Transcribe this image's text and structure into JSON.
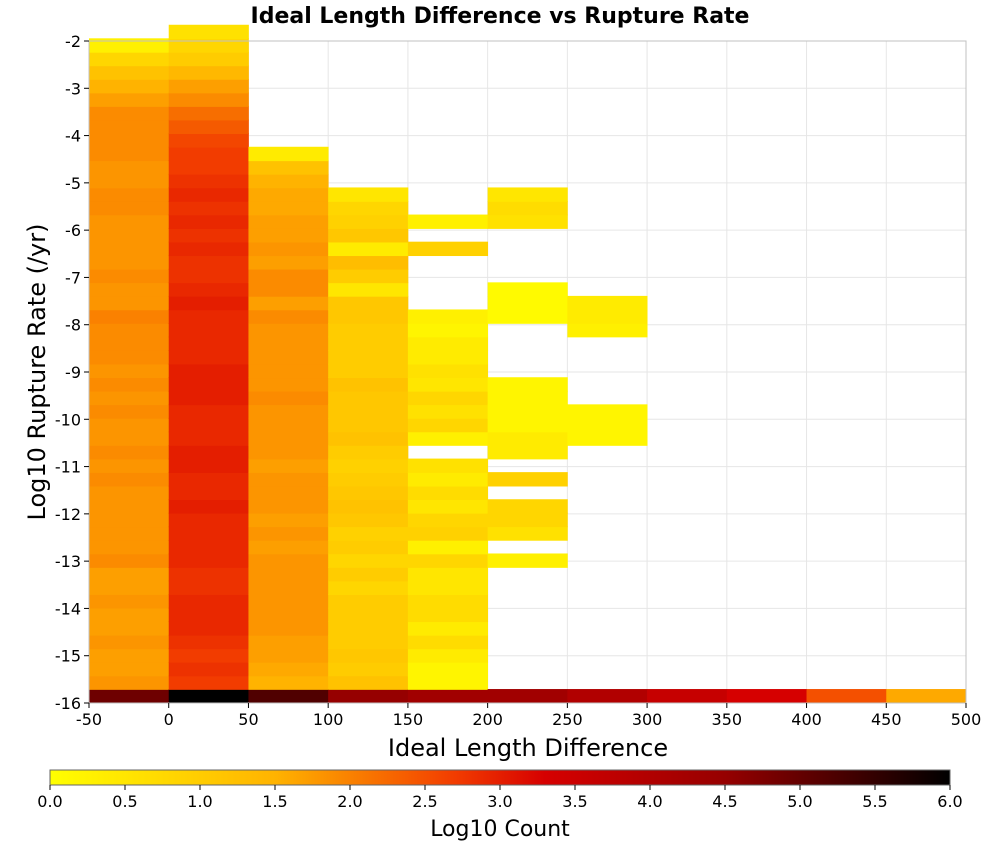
{
  "chart_data": {
    "type": "heatmap",
    "title": "Ideal Length Difference vs Rupture Rate",
    "xlabel": "Ideal Length Difference",
    "ylabel": "Log10 Rupture Rate (/yr)",
    "xlim": [
      -50,
      500
    ],
    "ylim": [
      -16,
      -2
    ],
    "x_ticks": [
      "-50",
      "0",
      "50",
      "100",
      "150",
      "200",
      "250",
      "300",
      "350",
      "400",
      "450",
      "500"
    ],
    "y_ticks": [
      "-2",
      "-3",
      "-4",
      "-5",
      "-6",
      "-7",
      "-8",
      "-9",
      "-10",
      "-11",
      "-12",
      "-13",
      "-14",
      "-15",
      "-16"
    ],
    "x_bin_width": 50,
    "y_bin_height": 0.2867,
    "y_bins_start": -16,
    "colorbar": {
      "label": "Log10 Count",
      "min": 0.0,
      "max": 6.0,
      "ticks": [
        "0.0",
        "0.5",
        "1.0",
        "1.5",
        "2.0",
        "2.5",
        "3.0",
        "3.5",
        "4.0",
        "4.5",
        "5.0",
        "5.5",
        "6.0"
      ]
    },
    "columns": [
      {
        "x_start": -50,
        "values": [
          4.9,
          1.8,
          1.7,
          1.7,
          1.8,
          1.7,
          1.7,
          1.8,
          1.7,
          1.7,
          1.9,
          1.8,
          1.8,
          1.8,
          1.8,
          1.8,
          1.9,
          1.8,
          1.9,
          1.8,
          1.8,
          1.9,
          1.8,
          1.9,
          1.8,
          1.9,
          1.9,
          1.9,
          2.0,
          1.8,
          1.8,
          1.9,
          1.8,
          1.8,
          1.8,
          1.8,
          1.9,
          1.9,
          1.8,
          1.8,
          1.9,
          1.9,
          1.9,
          1.9,
          1.7,
          1.5,
          1.2,
          0.8,
          0.3
        ]
      },
      {
        "x_start": 0,
        "values": [
          6.0,
          2.7,
          2.8,
          2.7,
          2.8,
          2.9,
          2.9,
          2.9,
          2.8,
          2.8,
          2.9,
          2.9,
          2.9,
          2.9,
          3.0,
          2.9,
          2.9,
          3.0,
          3.0,
          2.9,
          2.9,
          2.9,
          3.0,
          3.0,
          3.0,
          2.9,
          2.9,
          2.9,
          2.9,
          3.0,
          2.9,
          2.8,
          2.8,
          2.9,
          2.8,
          2.9,
          2.8,
          2.9,
          2.8,
          2.7,
          2.7,
          2.6,
          2.4,
          2.2,
          1.9,
          1.7,
          1.4,
          1.0,
          0.8,
          0.6
        ]
      },
      {
        "x_start": 50,
        "values": [
          5.2,
          1.5,
          1.6,
          1.7,
          1.7,
          1.8,
          1.8,
          1.8,
          1.8,
          1.8,
          1.8,
          1.7,
          1.8,
          1.7,
          1.8,
          1.8,
          1.8,
          1.7,
          1.8,
          1.8,
          1.8,
          1.8,
          1.9,
          1.8,
          1.8,
          1.8,
          1.8,
          1.8,
          1.9,
          1.7,
          1.9,
          1.9,
          1.7,
          1.8,
          1.7,
          1.7,
          1.6,
          1.6,
          1.5,
          1.2,
          0.4
        ]
      },
      {
        "x_start": 100,
        "values": [
          4.5,
          1.2,
          1.0,
          1.1,
          1.0,
          1.0,
          1.0,
          1.0,
          0.8,
          1.0,
          0.8,
          1.0,
          0.9,
          1.1,
          1.2,
          1.1,
          1.0,
          0.9,
          1.0,
          1.2,
          1.1,
          1.1,
          1.1,
          1.2,
          1.0,
          1.0,
          1.0,
          1.0,
          1.1,
          1.1,
          0.5,
          1.0,
          1.3,
          0.4,
          1.1,
          0.9,
          0.8,
          0.5
        ]
      },
      {
        "x_start": 150,
        "values": [
          4.3,
          0.2,
          0.2,
          0.4,
          0.7,
          0.4,
          0.7,
          0.7,
          0.5,
          0.5,
          0.8,
          0.3,
          0.9,
          0.8,
          0.5,
          0.7,
          0.4,
          0.6,
          null,
          0.3,
          0.8,
          0.6,
          0.8,
          0.5,
          0.6,
          0.4,
          0.4,
          0.2,
          0.3,
          null,
          null,
          null,
          null,
          0.9,
          null,
          0.3
        ]
      },
      {
        "x_start": 200,
        "values": [
          4.3,
          null,
          null,
          null,
          null,
          null,
          null,
          null,
          null,
          null,
          0.3,
          null,
          0.6,
          0.8,
          0.8,
          null,
          0.9,
          null,
          0.4,
          0.4,
          0.2,
          0.2,
          0.2,
          0.2,
          null,
          null,
          null,
          null,
          0.1,
          0.1,
          0.1,
          null,
          null,
          null,
          null,
          0.6,
          0.7,
          0.5
        ]
      },
      {
        "x_start": 250,
        "values": [
          4.0,
          null,
          null,
          null,
          null,
          null,
          null,
          null,
          null,
          null,
          null,
          null,
          null,
          null,
          null,
          null,
          null,
          null,
          null,
          0.2,
          0.2,
          0.2,
          null,
          null,
          null,
          null,
          null,
          0.3,
          0.4,
          0.4
        ]
      },
      {
        "x_start": 300,
        "values": [
          3.6
        ]
      },
      {
        "x_start": 350,
        "values": [
          3.3
        ]
      },
      {
        "x_start": 400,
        "values": [
          2.5
        ]
      },
      {
        "x_start": 450,
        "values": [
          1.6
        ]
      }
    ]
  }
}
